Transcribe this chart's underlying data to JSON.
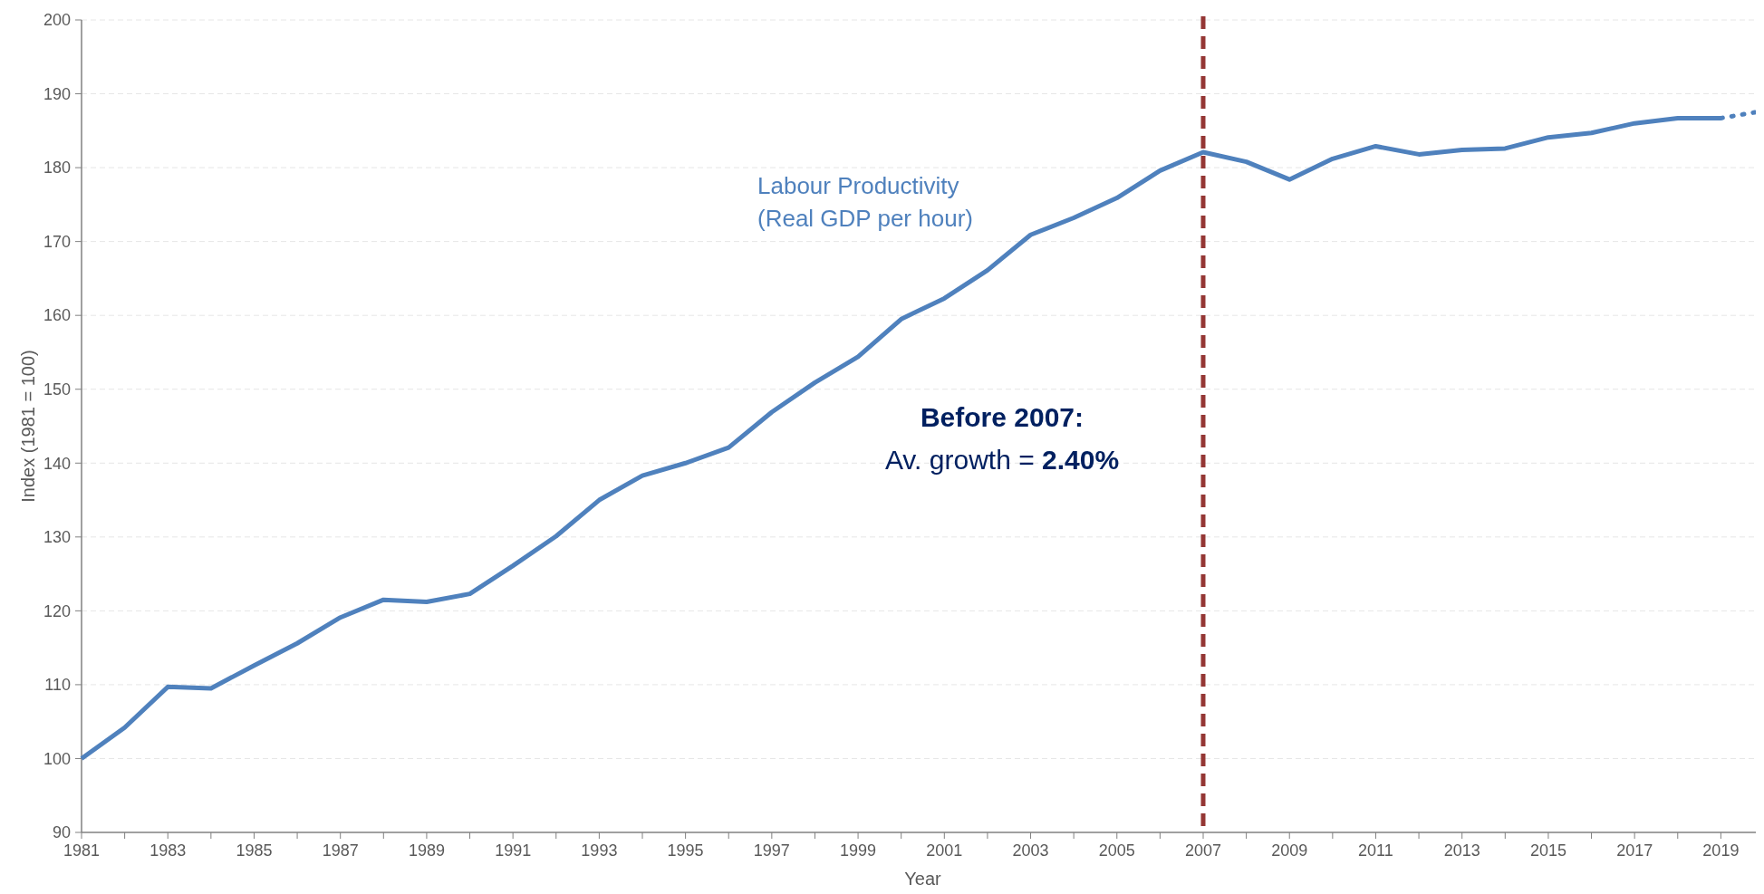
{
  "chart_data": {
    "type": "line",
    "xlabel": "Year",
    "ylabel": "Index (1981 = 100)",
    "xlim": [
      1981,
      2020
    ],
    "xticks": [
      1981,
      {
        "value": 1982,
        "label": null
      },
      1983,
      {
        "value": 1984,
        "label": null
      },
      1985,
      {
        "value": 1986,
        "label": null
      },
      1987,
      {
        "value": 1988,
        "label": null
      },
      1989,
      {
        "value": 1990,
        "label": null
      },
      1991,
      {
        "value": 1992,
        "label": null
      },
      1993,
      {
        "value": 1994,
        "label": null
      },
      1995,
      {
        "value": 1996,
        "label": null
      },
      1997,
      {
        "value": 1998,
        "label": null
      },
      1999,
      {
        "value": 2000,
        "label": null
      },
      2001,
      {
        "value": 2002,
        "label": null
      },
      2003,
      {
        "value": 2004,
        "label": null
      },
      2005,
      {
        "value": 2006,
        "label": null
      },
      2007,
      {
        "value": 2008,
        "label": null
      },
      2009,
      {
        "value": 2010,
        "label": null
      },
      2011,
      {
        "value": 2012,
        "label": null
      },
      2013,
      {
        "value": 2014,
        "label": null
      },
      2015,
      {
        "value": 2016,
        "label": null
      },
      2017,
      {
        "value": 2018,
        "label": null
      },
      2019,
      {
        "value": 2020,
        "label": null
      }
    ],
    "ylim": [
      90,
      200
    ],
    "yticks": [
      90,
      100,
      110,
      120,
      130,
      140,
      150,
      160,
      170,
      180,
      190,
      200
    ],
    "grid": "y",
    "series": [
      {
        "name": "Labour Productivity\n(Real GDP per hour)",
        "color": "#4f81bd",
        "line_style": "solid",
        "x": [
          1981,
          1982,
          1983,
          1984,
          1985,
          1986,
          1987,
          1988,
          1989,
          1990,
          1991,
          1992,
          1993,
          1994,
          1995,
          1996,
          1997,
          1998,
          1999,
          2000,
          2001,
          2002,
          2003,
          2004,
          2005,
          2006,
          2007,
          2008,
          2009,
          2010,
          2011,
          2012,
          2013,
          2014,
          2015,
          2016,
          2017,
          2018,
          2019
        ],
        "values": [
          100,
          104.2,
          109.7,
          109.5,
          112.6,
          115.6,
          119.1,
          121.5,
          121.2,
          122.3,
          126.1,
          130.1,
          135.0,
          138.3,
          140.0,
          142.1,
          146.9,
          150.9,
          154.4,
          159.5,
          162.3,
          166.1,
          170.9,
          173.2,
          175.9,
          179.6,
          182.1,
          180.8,
          178.4,
          181.2,
          182.9,
          181.8,
          182.4,
          182.6,
          184.1,
          184.7,
          186.0,
          186.7,
          186.7
        ]
      },
      {
        "color": "#4f81bd",
        "line_style": "dotted",
        "x": [
          2019,
          2019.8
        ],
        "values": [
          186.7,
          187.5
        ]
      }
    ],
    "ref_lines": [
      {
        "axis": "x",
        "value": 2007,
        "color": "#943634",
        "line_style": "dashed"
      }
    ],
    "annotations": [
      "Before 2007:",
      "Av. growth = ",
      "2.40%"
    ]
  }
}
